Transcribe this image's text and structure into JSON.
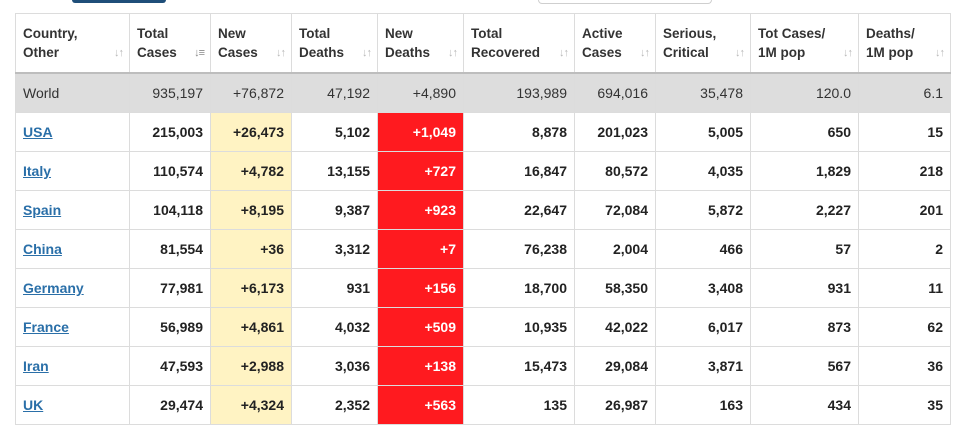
{
  "columns": [
    {
      "line1": "Country,",
      "line2": "Other"
    },
    {
      "line1": "Total",
      "line2": "Cases"
    },
    {
      "line1": "New",
      "line2": "Cases"
    },
    {
      "line1": "Total",
      "line2": "Deaths"
    },
    {
      "line1": "New",
      "line2": "Deaths"
    },
    {
      "line1": "Total",
      "line2": "Recovered"
    },
    {
      "line1": "Active",
      "line2": "Cases"
    },
    {
      "line1": "Serious,",
      "line2": "Critical"
    },
    {
      "line1": "Tot Cases/",
      "line2": "1M pop"
    },
    {
      "line1": "Deaths/",
      "line2": "1M pop"
    }
  ],
  "sort_icon": "sort-icon",
  "active_sort_icon": "sort-desc-icon",
  "colors": {
    "new_cases_bg": "#fff3c3",
    "new_deaths_bg": "#ff1a1f",
    "world_row_bg": "#dddddd",
    "link": "#2a6fa8"
  },
  "world": [
    "World",
    "935,197",
    "+76,872",
    "47,192",
    "+4,890",
    "193,989",
    "694,016",
    "35,478",
    "120.0",
    "6.1"
  ],
  "rows": [
    [
      "USA",
      "215,003",
      "+26,473",
      "5,102",
      "+1,049",
      "8,878",
      "201,023",
      "5,005",
      "650",
      "15"
    ],
    [
      "Italy",
      "110,574",
      "+4,782",
      "13,155",
      "+727",
      "16,847",
      "80,572",
      "4,035",
      "1,829",
      "218"
    ],
    [
      "Spain",
      "104,118",
      "+8,195",
      "9,387",
      "+923",
      "22,647",
      "72,084",
      "5,872",
      "2,227",
      "201"
    ],
    [
      "China",
      "81,554",
      "+36",
      "3,312",
      "+7",
      "76,238",
      "2,004",
      "466",
      "57",
      "2"
    ],
    [
      "Germany",
      "77,981",
      "+6,173",
      "931",
      "+156",
      "18,700",
      "58,350",
      "3,408",
      "931",
      "11"
    ],
    [
      "France",
      "56,989",
      "+4,861",
      "4,032",
      "+509",
      "10,935",
      "42,022",
      "6,017",
      "873",
      "62"
    ],
    [
      "Iran",
      "47,593",
      "+2,988",
      "3,036",
      "+138",
      "15,473",
      "29,084",
      "3,871",
      "567",
      "36"
    ],
    [
      "UK",
      "29,474",
      "+4,324",
      "2,352",
      "+563",
      "135",
      "26,987",
      "163",
      "434",
      "35"
    ]
  ]
}
